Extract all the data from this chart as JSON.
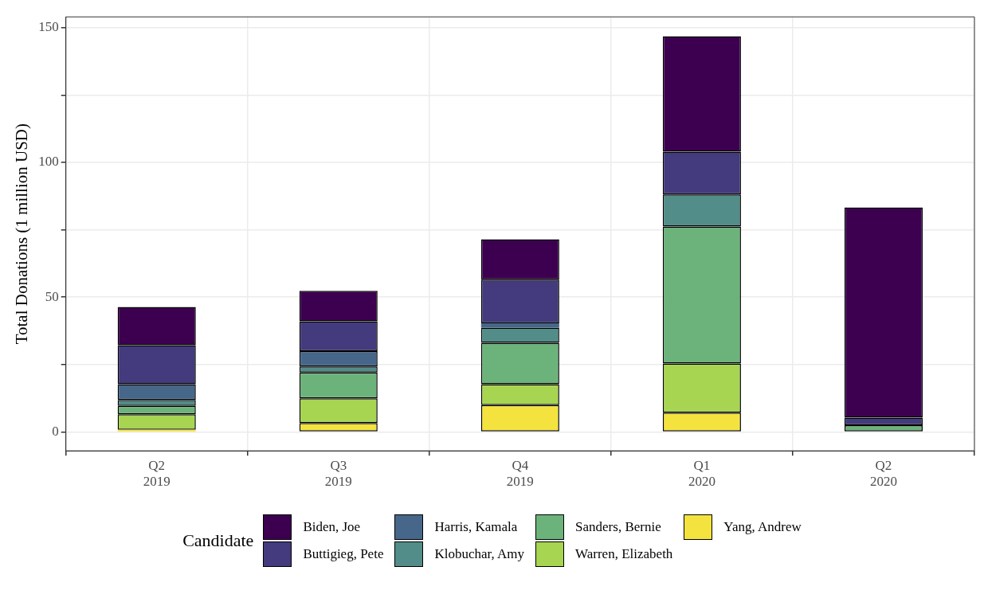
{
  "chart_data": {
    "type": "bar",
    "stacked": true,
    "ylabel": "Total Donations (1 million USD)",
    "legend_title": "Candidate",
    "legend": "bottom",
    "grid": true,
    "categories": [
      "Q2 2019",
      "Q3 2019",
      "Q4 2019",
      "Q1 2020",
      "Q2 2020"
    ],
    "ylim": [
      -7,
      154
    ],
    "yticks": [
      0,
      {
        "value": 25,
        "label": null
      },
      50,
      {
        "value": 75,
        "label": null
      },
      100,
      {
        "value": 125,
        "label": null
      },
      150
    ],
    "series": [
      {
        "name": "Yang, Andrew",
        "color": "#f4e33f",
        "values": [
          0.8,
          3.3,
          10.0,
          7.2,
          null
        ]
      },
      {
        "name": "Warren, Elizabeth",
        "color": "#a7d551",
        "values": [
          5.8,
          9.2,
          7.7,
          18.2,
          null
        ]
      },
      {
        "name": "Sanders, Bernie",
        "color": "#6cb37b",
        "values": [
          3.1,
          9.6,
          15.4,
          50.8,
          2.5
        ]
      },
      {
        "name": "Klobuchar, Amy",
        "color": "#528d89",
        "values": [
          2.2,
          2.2,
          5.6,
          11.9,
          null
        ]
      },
      {
        "name": "Harris, Kamala",
        "color": "#466789",
        "values": [
          5.8,
          5.7,
          1.6,
          null,
          null
        ]
      },
      {
        "name": "Buttigieg, Pete",
        "color": "#433b7d",
        "values": [
          14.5,
          11.1,
          16.2,
          15.9,
          2.8
        ]
      },
      {
        "name": "Biden, Joe",
        "color": "#3d0051",
        "values": [
          14.2,
          11.3,
          15.0,
          42.8,
          78.0
        ]
      }
    ]
  }
}
